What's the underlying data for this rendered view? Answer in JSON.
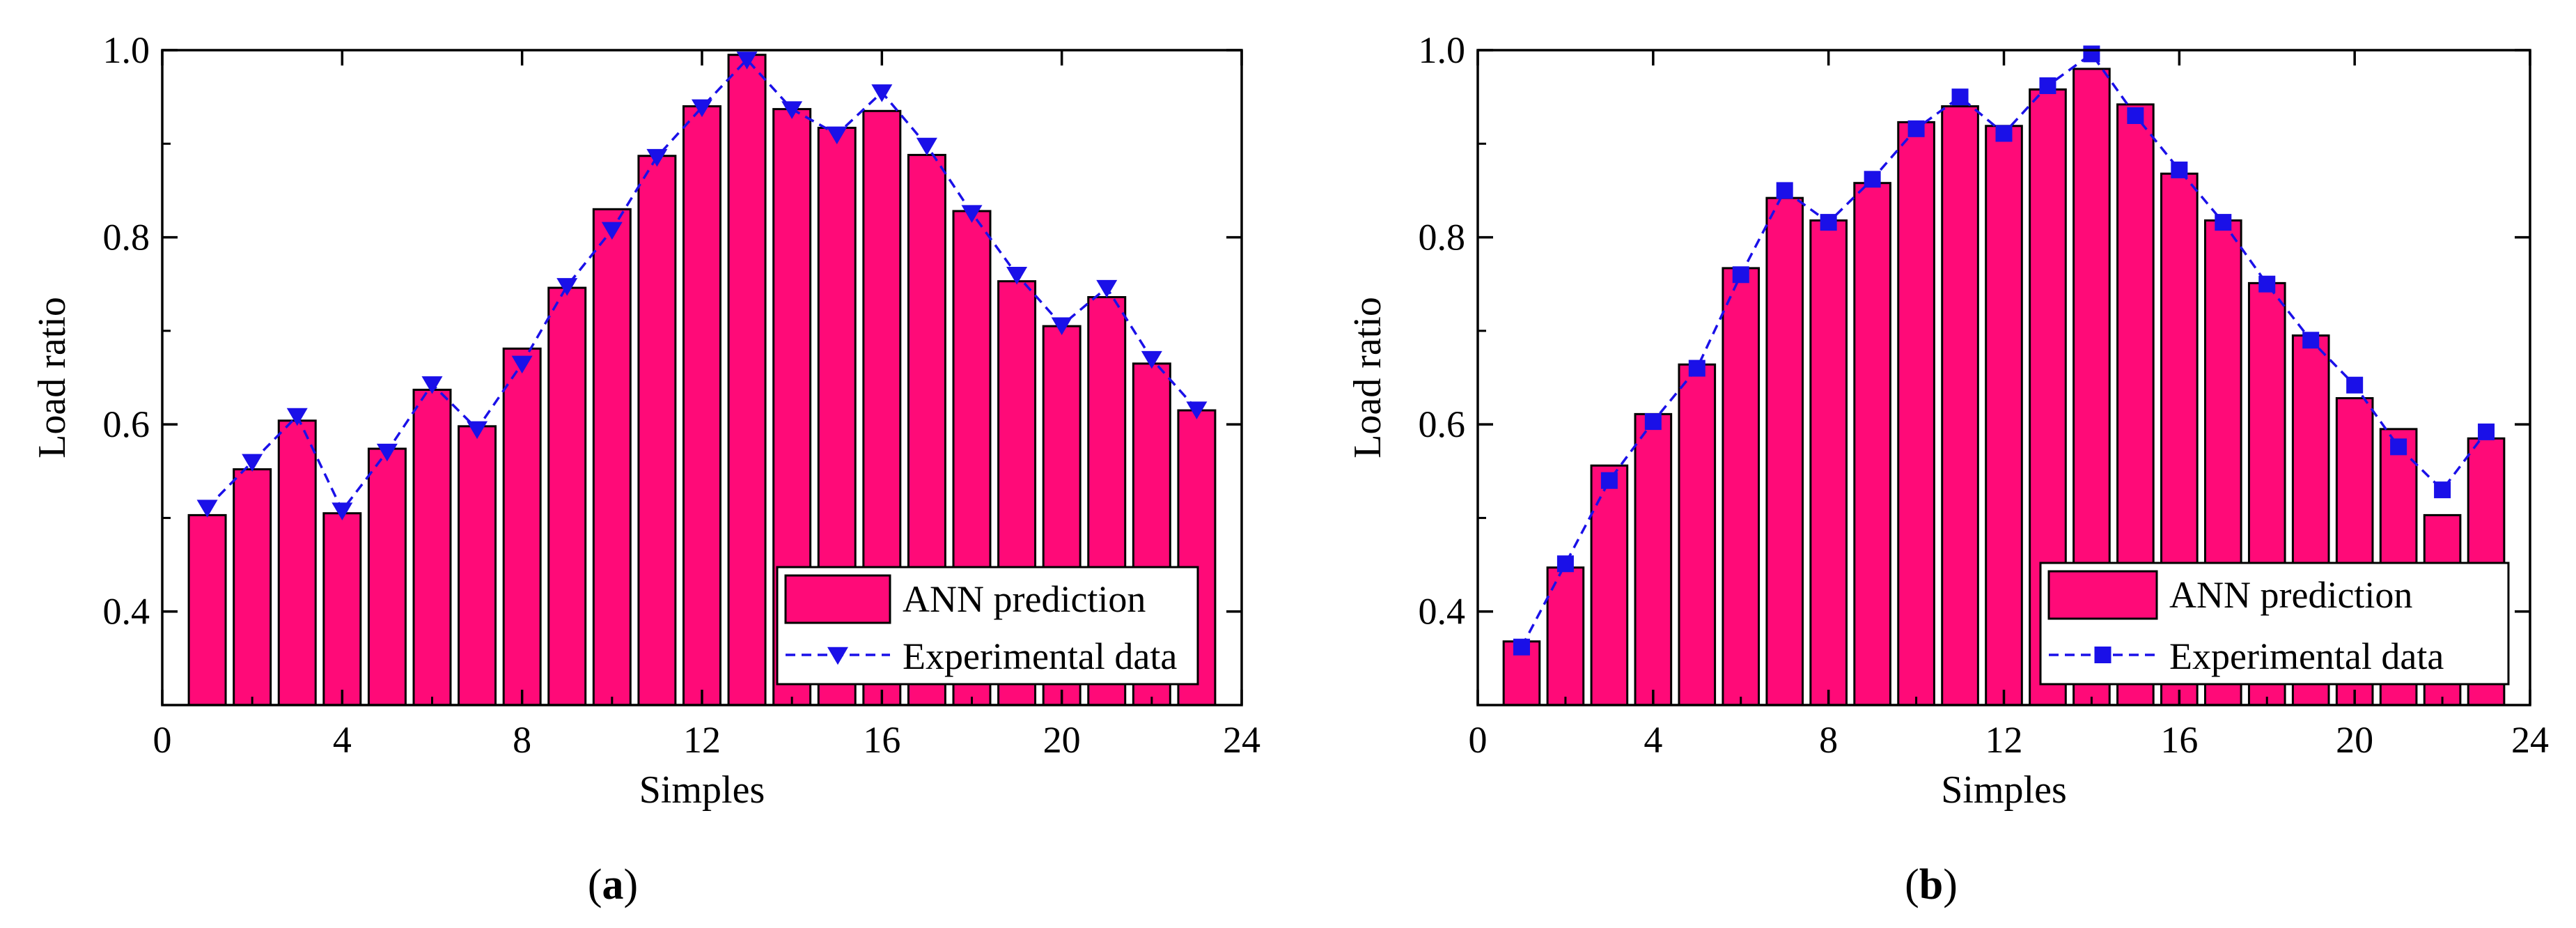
{
  "chart_data": [
    {
      "type": "bar",
      "panel_label": "a",
      "xlabel": "Simples",
      "ylabel": "Load ratio",
      "xlim": [
        0,
        24
      ],
      "ylim": [
        0.3,
        1.0
      ],
      "xticks": [
        0,
        4,
        8,
        12,
        16,
        20,
        24
      ],
      "yticks": [
        0.4,
        0.6,
        0.8,
        1.0
      ],
      "ytick_labels": [
        "0.4",
        "0.6",
        "0.8",
        "1.0"
      ],
      "grid": false,
      "legend_position": "bottom-right",
      "x": [
        1,
        2,
        3,
        4,
        5,
        6,
        7,
        8,
        9,
        10,
        11,
        12,
        13,
        14,
        15,
        16,
        17,
        18,
        19,
        20,
        21,
        22,
        23
      ],
      "series": [
        {
          "name": "ANN prediction",
          "kind": "bar",
          "color": "#ff0a78",
          "values": [
            0.503,
            0.552,
            0.604,
            0.505,
            0.574,
            0.637,
            0.598,
            0.681,
            0.746,
            0.83,
            0.887,
            0.94,
            0.995,
            0.937,
            0.917,
            0.935,
            0.888,
            0.828,
            0.753,
            0.705,
            0.736,
            0.665,
            0.615
          ]
        },
        {
          "name": "Experimental data",
          "kind": "line",
          "marker": "triangle-down",
          "color": "#1a10e8",
          "values": [
            0.511,
            0.56,
            0.609,
            0.508,
            0.571,
            0.643,
            0.595,
            0.665,
            0.748,
            0.808,
            0.886,
            0.939,
            0.99,
            0.937,
            0.91,
            0.955,
            0.898,
            0.826,
            0.76,
            0.706,
            0.746,
            0.67,
            0.616
          ]
        }
      ]
    },
    {
      "type": "bar",
      "panel_label": "b",
      "xlabel": "Simples",
      "ylabel": "Load ratio",
      "xlim": [
        0,
        24
      ],
      "ylim": [
        0.3,
        1.0
      ],
      "xticks": [
        0,
        4,
        8,
        12,
        16,
        20,
        24
      ],
      "yticks": [
        0.4,
        0.6,
        0.8,
        1.0
      ],
      "ytick_labels": [
        "0.4",
        "0.6",
        "0.8",
        "1.0"
      ],
      "grid": false,
      "legend_position": "bottom-right",
      "x": [
        1,
        2,
        3,
        4,
        5,
        6,
        7,
        8,
        9,
        10,
        11,
        12,
        13,
        14,
        15,
        16,
        17,
        18,
        19,
        20,
        21,
        22,
        23
      ],
      "series": [
        {
          "name": "ANN prediction",
          "kind": "bar",
          "color": "#ff0a78",
          "values": [
            0.368,
            0.447,
            0.556,
            0.611,
            0.664,
            0.767,
            0.842,
            0.818,
            0.858,
            0.923,
            0.94,
            0.919,
            0.958,
            0.98,
            0.942,
            0.868,
            0.818,
            0.751,
            0.695,
            0.628,
            0.595,
            0.503,
            0.585
          ]
        },
        {
          "name": "Experimental data",
          "kind": "line",
          "marker": "square",
          "color": "#1a10e8",
          "values": [
            0.362,
            0.451,
            0.54,
            0.603,
            0.66,
            0.76,
            0.85,
            0.816,
            0.862,
            0.916,
            0.95,
            0.911,
            0.962,
            0.996,
            0.93,
            0.872,
            0.816,
            0.75,
            0.69,
            0.642,
            0.576,
            0.53,
            0.592
          ]
        }
      ]
    }
  ]
}
